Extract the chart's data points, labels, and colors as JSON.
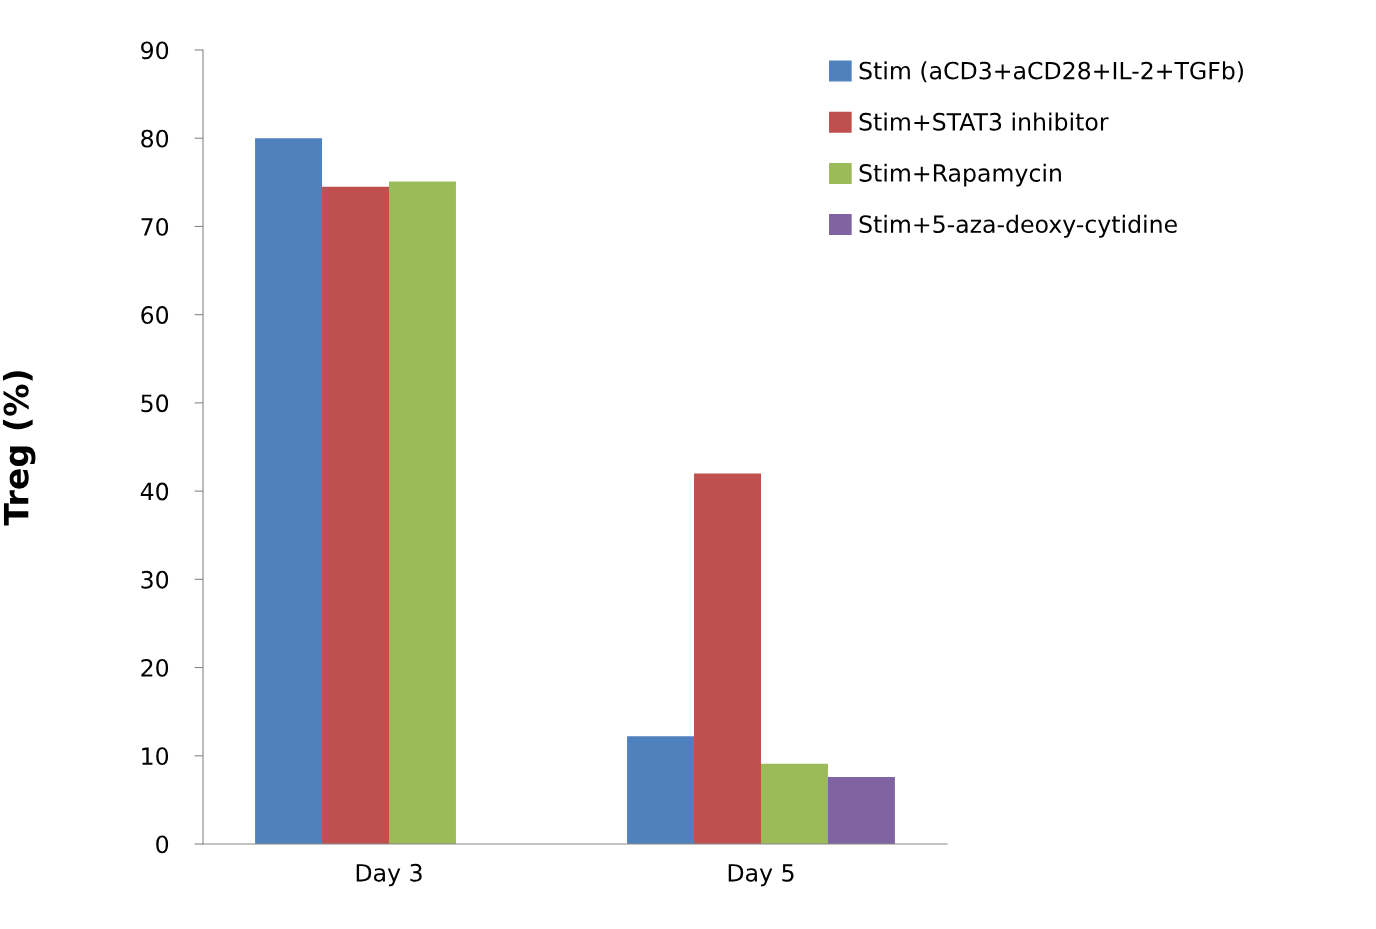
{
  "chart_data": {
    "type": "bar",
    "ylabel": "Treg (%)",
    "categories": [
      "Day 3",
      "Day 5"
    ],
    "series": [
      {
        "name": "Stim (aCD3+aCD28+IL-2+TGFb)",
        "color": "#4f81bd",
        "values": [
          80,
          12.2
        ]
      },
      {
        "name": "Stim+STAT3 inhibitor",
        "color": "#c0504d",
        "values": [
          74.5,
          42
        ]
      },
      {
        "name": "Stim+Rapamycin",
        "color": "#9bbb59",
        "values": [
          75.1,
          9.1
        ]
      },
      {
        "name": "Stim+5-aza-deoxy-cytidine",
        "color": "#8064a2",
        "values": [
          null,
          7.6
        ]
      }
    ],
    "ylim": [
      0,
      90
    ],
    "yticks": [
      0,
      10,
      20,
      30,
      40,
      50,
      60,
      70,
      80,
      90
    ],
    "grid": false,
    "legend": "top right"
  }
}
